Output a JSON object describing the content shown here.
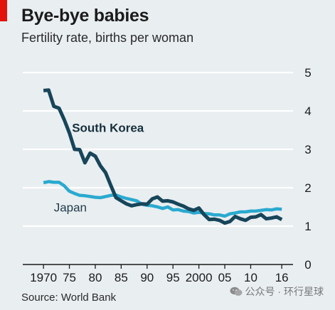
{
  "header": {
    "title": "Bye-bye babies",
    "subtitle": "Fertility rate, births per woman"
  },
  "footer": {
    "source": "Source: World Bank"
  },
  "watermark": {
    "text": "公众号 · 环行星球"
  },
  "colors": {
    "accent": "#e3120b",
    "background": "#e9eef1",
    "south_korea": "#17455a",
    "japan": "#2aa9cf"
  },
  "chart_data": {
    "type": "line",
    "title": "Bye-bye babies",
    "subtitle": "Fertility rate, births per woman",
    "xlabel": "",
    "ylabel": "",
    "xlim": [
      1966,
      2019
    ],
    "ylim": [
      0,
      5
    ],
    "y_axis_position": "right",
    "grid": true,
    "x_ticks": [
      {
        "value": 1970,
        "label": "1970"
      },
      {
        "value": 1975,
        "label": "75"
      },
      {
        "value": 1980,
        "label": "80"
      },
      {
        "value": 1985,
        "label": "85"
      },
      {
        "value": 1990,
        "label": "90"
      },
      {
        "value": 1995,
        "label": "95"
      },
      {
        "value": 2000,
        "label": "2000"
      },
      {
        "value": 2005,
        "label": "05"
      },
      {
        "value": 2010,
        "label": "10"
      },
      {
        "value": 2016,
        "label": "16"
      }
    ],
    "y_ticks": [
      {
        "value": 0,
        "label": "0"
      },
      {
        "value": 1,
        "label": "1"
      },
      {
        "value": 2,
        "label": "2"
      },
      {
        "value": 3,
        "label": "3"
      },
      {
        "value": 4,
        "label": "4"
      },
      {
        "value": 5,
        "label": "5"
      }
    ],
    "series": [
      {
        "name": "South Korea",
        "color": "#17455a",
        "label_at": {
          "x": 1975.5,
          "y": 3.45
        },
        "points": [
          [
            1970,
            4.53
          ],
          [
            1971,
            4.54
          ],
          [
            1972,
            4.12
          ],
          [
            1973,
            4.07
          ],
          [
            1974,
            3.77
          ],
          [
            1975,
            3.43
          ],
          [
            1976,
            3.0
          ],
          [
            1977,
            2.99
          ],
          [
            1978,
            2.65
          ],
          [
            1979,
            2.9
          ],
          [
            1980,
            2.82
          ],
          [
            1981,
            2.57
          ],
          [
            1982,
            2.39
          ],
          [
            1983,
            2.06
          ],
          [
            1984,
            1.74
          ],
          [
            1985,
            1.66
          ],
          [
            1986,
            1.58
          ],
          [
            1987,
            1.53
          ],
          [
            1988,
            1.56
          ],
          [
            1989,
            1.58
          ],
          [
            1990,
            1.57
          ],
          [
            1991,
            1.71
          ],
          [
            1992,
            1.76
          ],
          [
            1993,
            1.65
          ],
          [
            1994,
            1.66
          ],
          [
            1995,
            1.63
          ],
          [
            1996,
            1.57
          ],
          [
            1997,
            1.52
          ],
          [
            1998,
            1.45
          ],
          [
            1999,
            1.41
          ],
          [
            2000,
            1.47
          ],
          [
            2001,
            1.3
          ],
          [
            2002,
            1.17
          ],
          [
            2003,
            1.18
          ],
          [
            2004,
            1.15
          ],
          [
            2005,
            1.08
          ],
          [
            2006,
            1.12
          ],
          [
            2007,
            1.25
          ],
          [
            2008,
            1.19
          ],
          [
            2009,
            1.15
          ],
          [
            2010,
            1.23
          ],
          [
            2011,
            1.24
          ],
          [
            2012,
            1.3
          ],
          [
            2013,
            1.19
          ],
          [
            2014,
            1.21
          ],
          [
            2015,
            1.24
          ],
          [
            2016,
            1.17
          ]
        ]
      },
      {
        "name": "Japan",
        "color": "#2aa9cf",
        "label_at": {
          "x": 1972,
          "y": 1.38
        },
        "points": [
          [
            1970,
            2.13
          ],
          [
            1971,
            2.16
          ],
          [
            1972,
            2.14
          ],
          [
            1973,
            2.14
          ],
          [
            1974,
            2.05
          ],
          [
            1975,
            1.91
          ],
          [
            1976,
            1.85
          ],
          [
            1977,
            1.8
          ],
          [
            1978,
            1.79
          ],
          [
            1979,
            1.77
          ],
          [
            1980,
            1.75
          ],
          [
            1981,
            1.74
          ],
          [
            1982,
            1.77
          ],
          [
            1983,
            1.8
          ],
          [
            1984,
            1.81
          ],
          [
            1985,
            1.76
          ],
          [
            1986,
            1.72
          ],
          [
            1987,
            1.69
          ],
          [
            1988,
            1.66
          ],
          [
            1989,
            1.57
          ],
          [
            1990,
            1.54
          ],
          [
            1991,
            1.53
          ],
          [
            1992,
            1.5
          ],
          [
            1993,
            1.46
          ],
          [
            1994,
            1.5
          ],
          [
            1995,
            1.42
          ],
          [
            1996,
            1.43
          ],
          [
            1997,
            1.39
          ],
          [
            1998,
            1.38
          ],
          [
            1999,
            1.34
          ],
          [
            2000,
            1.36
          ],
          [
            2001,
            1.33
          ],
          [
            2002,
            1.32
          ],
          [
            2003,
            1.29
          ],
          [
            2004,
            1.29
          ],
          [
            2005,
            1.26
          ],
          [
            2006,
            1.32
          ],
          [
            2007,
            1.34
          ],
          [
            2008,
            1.37
          ],
          [
            2009,
            1.37
          ],
          [
            2010,
            1.39
          ],
          [
            2011,
            1.39
          ],
          [
            2012,
            1.41
          ],
          [
            2013,
            1.43
          ],
          [
            2014,
            1.42
          ],
          [
            2015,
            1.45
          ],
          [
            2016,
            1.44
          ]
        ]
      }
    ]
  }
}
